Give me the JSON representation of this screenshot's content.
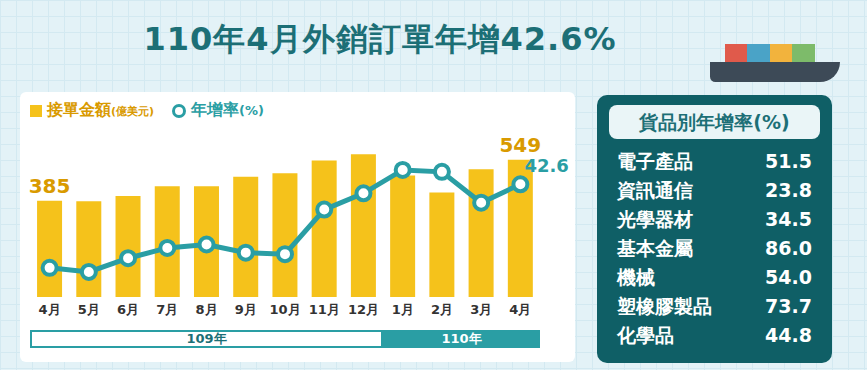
{
  "title": "110年4月外銷訂單年增42.6%",
  "chart_data": {
    "type": "bar",
    "categories": [
      "4月",
      "5月",
      "6月",
      "7月",
      "8月",
      "9月",
      "10月",
      "11月",
      "12月",
      "1月",
      "2月",
      "3月",
      "4月"
    ],
    "year_groups": [
      {
        "label": "109年",
        "count": 9
      },
      {
        "label": "110年",
        "count": 4
      }
    ],
    "series": [
      {
        "name": "接單金額(億美元)",
        "type": "bar",
        "color": "#f5c21b",
        "values": [
          385,
          383,
          404,
          443,
          443,
          481,
          495,
          546,
          571,
          486,
          418,
          511,
          549
        ],
        "value_labels": [
          "385",
          null,
          null,
          null,
          null,
          null,
          null,
          null,
          null,
          null,
          null,
          null,
          "549"
        ]
      },
      {
        "name": "年增率(%)",
        "type": "line",
        "axis": "y2",
        "color": "#2a9ea4",
        "marker": "circle",
        "values": [
          3.6,
          1.7,
          8.1,
          12.9,
          14.5,
          10.7,
          10.0,
          30.8,
          38.4,
          49.3,
          48.4,
          34.0,
          42.6
        ],
        "value_labels": [
          null,
          null,
          null,
          null,
          null,
          null,
          null,
          null,
          null,
          null,
          null,
          null,
          "42.6"
        ]
      }
    ],
    "ylim": [
      0,
      600
    ],
    "y2lim": [
      -10,
      60
    ],
    "grid": false,
    "tick_labels": "x",
    "legend": "top"
  },
  "table": {
    "title": "貨品別年增率(%)",
    "rows": [
      [
        "電子產品",
        "51.5"
      ],
      [
        "資訊通信",
        "23.8"
      ],
      [
        "光學器材",
        "34.5"
      ],
      [
        "基本金屬",
        "86.0"
      ],
      [
        "機械",
        "54.0"
      ],
      [
        "塑橡膠製品",
        "73.7"
      ],
      [
        "化學品",
        "44.8"
      ]
    ]
  }
}
